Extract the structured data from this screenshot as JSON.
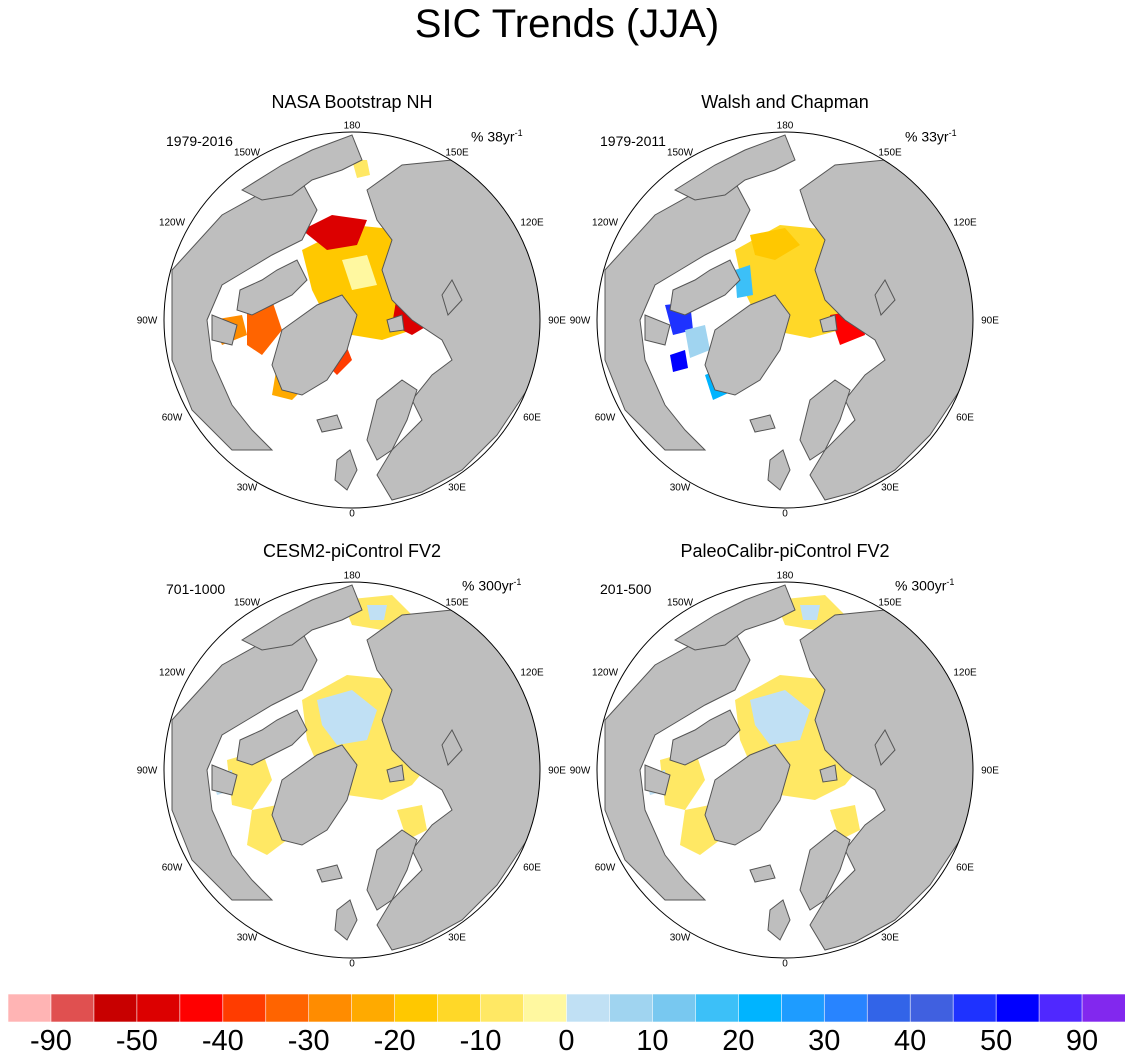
{
  "title": "SIC Trends (JJA)",
  "colors": {
    "land": "#bebebe",
    "coast": "#555555",
    "ocean": "#ffffff"
  },
  "chart_data": {
    "type": "heatmap",
    "title": "SIC Trends (JJA)",
    "panels": [
      {
        "title": "NASA Bootstrap NH",
        "period": "1979-2016",
        "units": "% 38yr",
        "units_exp": "-1",
        "pattern": "decline"
      },
      {
        "title": "Walsh and Chapman",
        "period": "1979-2011",
        "units": "% 33yr",
        "units_exp": "-1",
        "pattern": "mixed"
      },
      {
        "title": "CESM2-piControl FV2",
        "period": "701-1000",
        "units": "% 300yr",
        "units_exp": "-1",
        "pattern": "weak"
      },
      {
        "title": "PaleoCalibr-piControl FV2",
        "period": "201-500",
        "units": "% 300yr",
        "units_exp": "-1",
        "pattern": "weak"
      }
    ],
    "longitude_labels": [
      "180",
      "150W",
      "150E",
      "120W",
      "120E",
      "90W",
      "90E",
      "60W",
      "60E",
      "30W",
      "30E",
      "0"
    ],
    "colorbar": {
      "colors": [
        "#ffb4b4",
        "#e05050",
        "#c80000",
        "#dc0000",
        "#ff0000",
        "#ff3c00",
        "#ff6400",
        "#ff8c00",
        "#ffaa00",
        "#ffc800",
        "#ffd828",
        "#ffe864",
        "#fff8a0",
        "#c0e0f4",
        "#a0d4f0",
        "#78c8f0",
        "#3cc0f8",
        "#00b4ff",
        "#1e9cff",
        "#2884ff",
        "#3264e8",
        "#4060e0",
        "#1e32ff",
        "#0000ff",
        "#5028ff",
        "#8228ee"
      ],
      "tick_labels": [
        "-90",
        "-50",
        "-40",
        "-30",
        "-20",
        "-10",
        "0",
        "10",
        "20",
        "30",
        "40",
        "50",
        "90"
      ]
    }
  }
}
